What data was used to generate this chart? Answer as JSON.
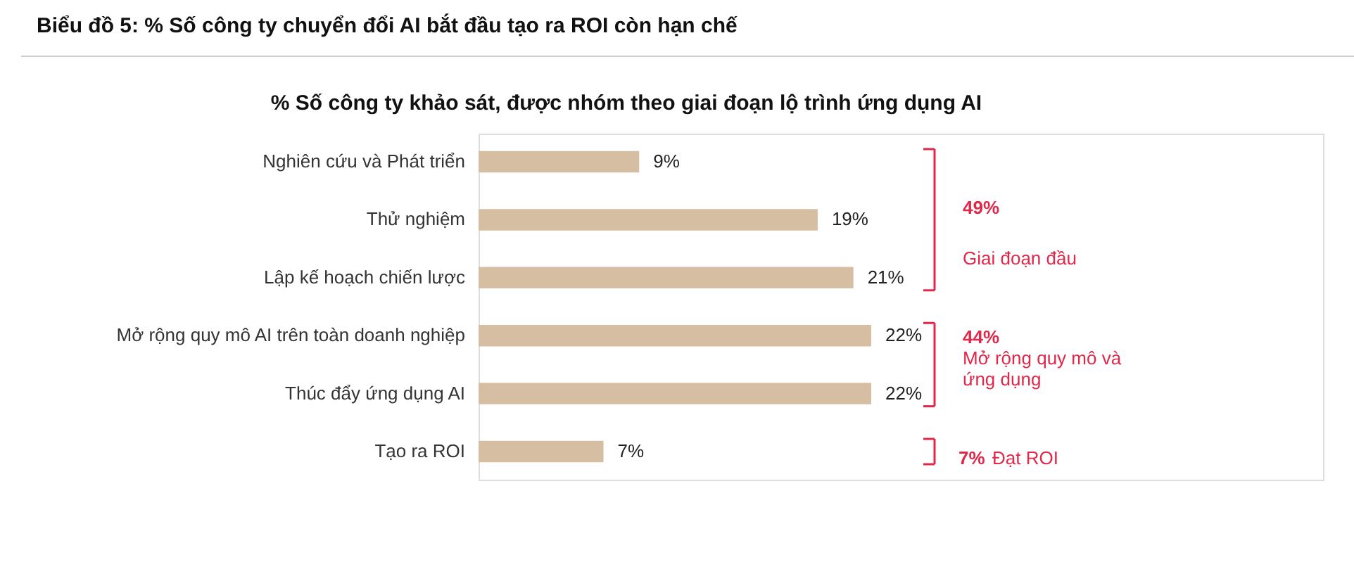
{
  "chart_data": {
    "type": "bar",
    "orientation": "horizontal",
    "title": "Biểu đồ 5: % Số công ty chuyển đổi AI bắt đầu tạo ra ROI còn hạn chế",
    "subtitle": "% Số công ty khảo sát, được nhóm theo giai đoạn lộ trình ứng dụng AI",
    "categories": [
      "Nghiên cứu và Phát triển",
      "Thử nghiệm",
      "Lập kế hoạch chiến lược",
      "Mở rộng quy mô AI trên toàn doanh nghiệp",
      "Thúc đẩy ứng dụng AI",
      "Tạo ra ROI"
    ],
    "values": [
      9,
      19,
      21,
      22,
      22,
      7
    ],
    "value_labels": [
      "9%",
      "19%",
      "21%",
      "22%",
      "22%",
      "7%"
    ],
    "color": "#d5bea2",
    "annotations": [
      "49%",
      "Giai đoạn đầu",
      "44%",
      "Mở rộng quy mô và ứng dụng",
      "7%",
      "Đạt ROI"
    ],
    "grid": false
  }
}
